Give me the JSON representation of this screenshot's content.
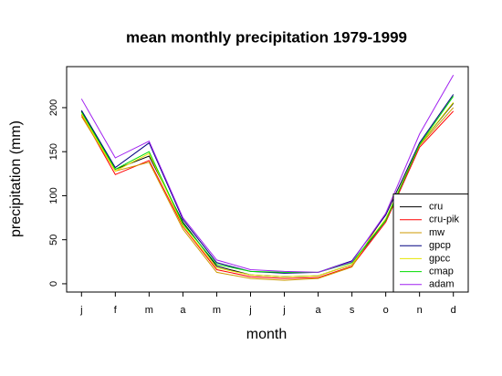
{
  "chart_data": {
    "type": "line",
    "title": "mean monthly precipitation 1979-1999",
    "x_label": "month",
    "y_label": "precipitation (mm)",
    "categories": [
      "j",
      "f",
      "m",
      "a",
      "m",
      "j",
      "j",
      "a",
      "s",
      "o",
      "n",
      "d"
    ],
    "series": [
      {
        "name": "cru",
        "color": "#000000",
        "values": [
          196,
          130,
          145,
          70,
          20,
          10,
          8,
          9,
          22,
          72,
          158,
          205
        ]
      },
      {
        "name": "cru-pik",
        "color": "#ff0000",
        "values": [
          192,
          124,
          140,
          65,
          16,
          8,
          6,
          7,
          20,
          70,
          155,
          196
        ]
      },
      {
        "name": "mw",
        "color": "#cc9900",
        "values": [
          190,
          128,
          138,
          62,
          13,
          6,
          4,
          6,
          19,
          80,
          157,
          200
        ]
      },
      {
        "name": "gpcp",
        "color": "#000080",
        "values": [
          197,
          132,
          160,
          73,
          24,
          14,
          12,
          13,
          26,
          78,
          160,
          215
        ]
      },
      {
        "name": "gpcc",
        "color": "#e6e600",
        "values": [
          193,
          128,
          148,
          66,
          18,
          10,
          8,
          9,
          22,
          74,
          158,
          206
        ]
      },
      {
        "name": "cmap",
        "color": "#00dd00",
        "values": [
          195,
          130,
          150,
          68,
          22,
          14,
          13,
          13,
          24,
          72,
          158,
          213
        ]
      },
      {
        "name": "adam",
        "color": "#a020f0",
        "values": [
          210,
          143,
          162,
          75,
          27,
          16,
          14,
          13,
          25,
          80,
          170,
          237
        ]
      }
    ],
    "ylim": [
      -9.4,
      246.6
    ],
    "yticks": [
      0,
      50,
      100,
      150,
      200
    ],
    "legend": "bottom-right"
  }
}
